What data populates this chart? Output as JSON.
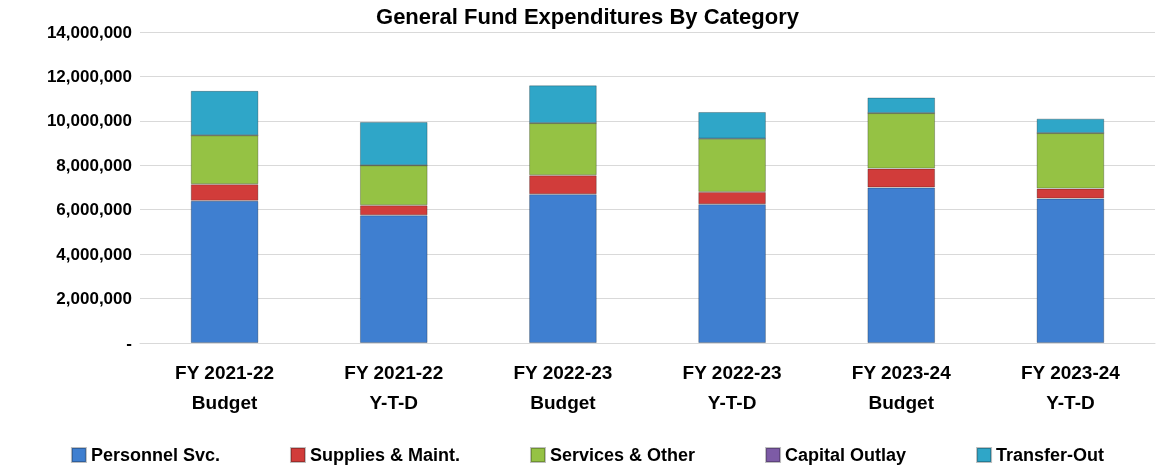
{
  "chart_data": {
    "type": "bar",
    "title": "General Fund Expenditures By Category",
    "stacked": true,
    "grid": "y",
    "legend": "bottom",
    "categories": [
      "FY 2021-22\nBudget",
      "FY 2021-22\nY-T-D",
      "FY 2022-23\nBudget",
      "FY 2022-23\nY-T-D",
      "FY 2023-24\nBudget",
      "FY 2023-24\nY-T-D"
    ],
    "series": [
      {
        "name": "Personnel Svc.",
        "color": "#3f7fd0",
        "values": [
          6400000,
          5750000,
          6700000,
          6250000,
          7000000,
          6500000
        ]
      },
      {
        "name": "Supplies & Maint.",
        "color": "#d13c3a",
        "values": [
          750000,
          450000,
          850000,
          550000,
          850000,
          450000
        ]
      },
      {
        "name": "Services & Other",
        "color": "#95c244",
        "values": [
          2200000,
          1800000,
          2350000,
          2400000,
          2500000,
          2500000
        ]
      },
      {
        "name": "Capital Outlay",
        "color": "#7d5ba6",
        "values": [
          0,
          0,
          0,
          0,
          0,
          0
        ]
      },
      {
        "name": "Transfer-Out",
        "color": "#2fa6c8",
        "values": [
          2000000,
          1950000,
          1700000,
          1200000,
          700000,
          650000
        ]
      }
    ],
    "ylim": [
      0,
      14000000
    ],
    "yticks": [
      {
        "value": 0,
        "label": "-"
      },
      {
        "value": 2000000,
        "label": "2,000,000"
      },
      {
        "value": 4000000,
        "label": "4,000,000"
      },
      {
        "value": 6000000,
        "label": "6,000,000"
      },
      {
        "value": 8000000,
        "label": "8,000,000"
      },
      {
        "value": 10000000,
        "label": "10,000,000"
      },
      {
        "value": 12000000,
        "label": "12,000,000"
      },
      {
        "value": 14000000,
        "label": "14,000,000"
      }
    ]
  }
}
